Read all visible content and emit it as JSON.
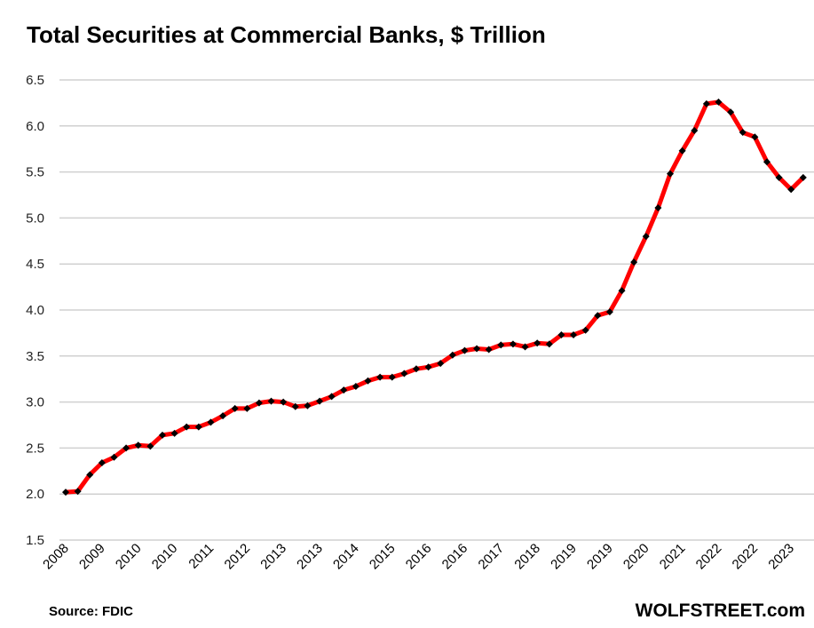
{
  "chart_data": {
    "type": "line",
    "title": "Total Securities at Commercial Banks, $ Trillion",
    "xlabel": "",
    "ylabel": "",
    "ylim": [
      1.5,
      6.5
    ],
    "yticks": [
      "1.5",
      "2.0",
      "2.5",
      "3.0",
      "3.5",
      "4.0",
      "4.5",
      "5.0",
      "5.5",
      "6.0",
      "6.5"
    ],
    "grid": true,
    "frequency": "quarterly",
    "xtick_labels": [
      "2008",
      "2009",
      "2010",
      "2010",
      "2011",
      "2012",
      "2013",
      "2013",
      "2014",
      "2015",
      "2016",
      "2016",
      "2017",
      "2018",
      "2019",
      "2019",
      "2020",
      "2021",
      "2022",
      "2022",
      "2023"
    ],
    "series": [
      {
        "name": "Total Securities",
        "color": "#ff0000",
        "marker_color": "#000000",
        "values": [
          2.02,
          2.03,
          2.21,
          2.34,
          2.4,
          2.5,
          2.53,
          2.52,
          2.64,
          2.66,
          2.73,
          2.73,
          2.78,
          2.85,
          2.93,
          2.93,
          2.99,
          3.01,
          3.0,
          2.95,
          2.96,
          3.01,
          3.06,
          3.13,
          3.17,
          3.23,
          3.27,
          3.27,
          3.31,
          3.36,
          3.38,
          3.42,
          3.51,
          3.56,
          3.58,
          3.57,
          3.62,
          3.63,
          3.6,
          3.64,
          3.63,
          3.73,
          3.73,
          3.78,
          3.94,
          3.98,
          4.21,
          4.52,
          4.8,
          5.11,
          5.48,
          5.73,
          5.95,
          6.24,
          6.26,
          6.15,
          5.93,
          5.88,
          5.61,
          5.44,
          5.31,
          5.44
        ]
      }
    ]
  },
  "footer": {
    "source": "Source: FDIC",
    "brand": "WOLFSTREET.com"
  }
}
